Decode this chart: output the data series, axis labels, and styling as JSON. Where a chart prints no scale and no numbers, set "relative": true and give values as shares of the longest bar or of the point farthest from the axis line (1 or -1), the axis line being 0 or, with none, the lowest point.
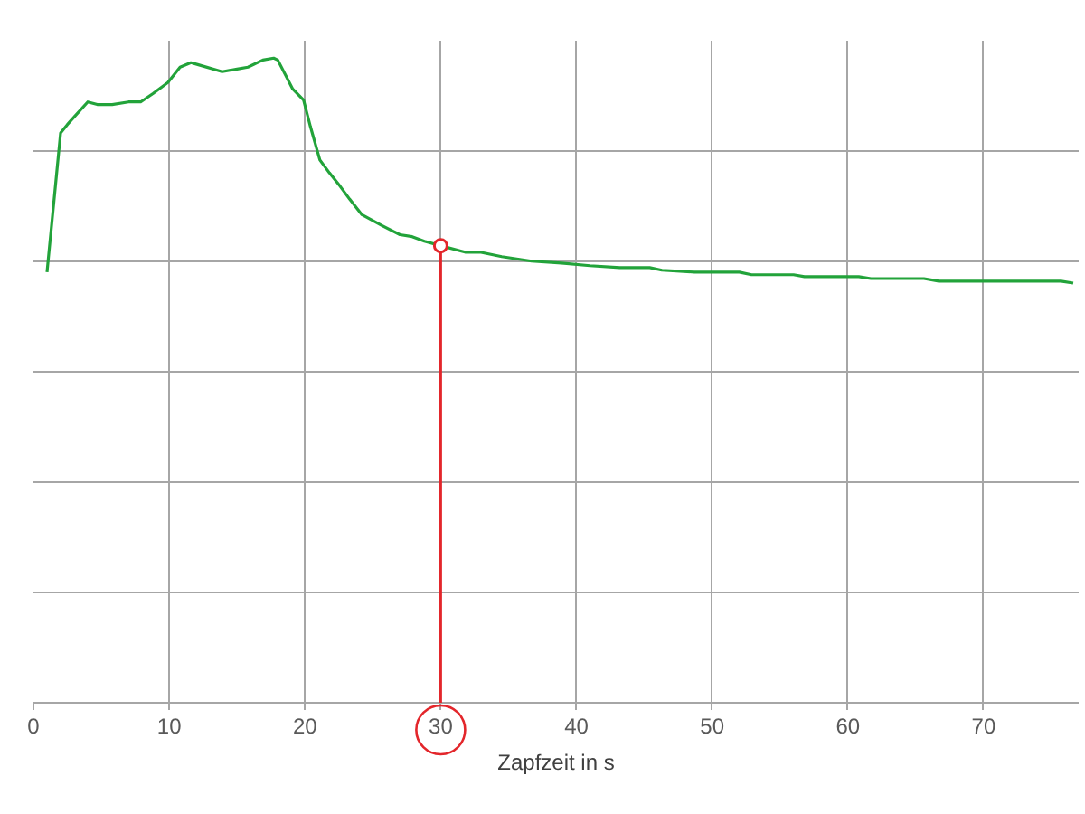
{
  "chart_data": {
    "type": "line",
    "relative": true,
    "xlabel": "Zapfzeit in s",
    "xlim": [
      0,
      77
    ],
    "xticks": [
      0,
      10,
      20,
      30,
      40,
      50,
      60,
      70
    ],
    "grid": true,
    "series": [
      {
        "color": "#22a33a",
        "x": [
          1.0,
          2.0,
          2.5,
          3.1,
          4.0,
          4.7,
          5.8,
          7.0,
          7.9,
          8.8,
          9.9,
          10.8,
          11.6,
          12.1,
          13.9,
          15.0,
          15.8,
          16.9,
          17.7,
          18.0,
          19.1,
          19.9,
          20.4,
          21.1,
          21.8,
          22.6,
          23.3,
          24.2,
          25.7,
          27.0,
          27.9,
          28.8,
          30.0,
          31.8,
          32.9,
          34.5,
          36.7,
          38.9,
          41.0,
          43.2,
          45.4,
          46.3,
          48.7,
          52.0,
          52.9,
          56.0,
          56.8,
          60.8,
          61.7,
          65.6,
          66.7,
          75.7,
          76.6
        ],
        "values": [
          0.668,
          0.884,
          0.897,
          0.911,
          0.932,
          0.928,
          0.928,
          0.932,
          0.932,
          0.945,
          0.962,
          0.986,
          0.993,
          0.99,
          0.979,
          0.983,
          0.986,
          0.997,
          1,
          0.997,
          0.952,
          0.935,
          0.894,
          0.842,
          0.822,
          0.801,
          0.781,
          0.757,
          0.74,
          0.726,
          0.723,
          0.716,
          0.709,
          0.699,
          0.699,
          0.692,
          0.685,
          0.682,
          0.678,
          0.675,
          0.675,
          0.671,
          0.668,
          0.668,
          0.664,
          0.664,
          0.661,
          0.661,
          0.658,
          0.658,
          0.654,
          0.654,
          0.651
        ]
      },
      {
        "type": "scatter",
        "marker": "circle",
        "color": "#e3262b",
        "x": [
          30
        ],
        "values": [
          0.709
        ]
      }
    ],
    "ref_lines": [
      {
        "axis": "x",
        "value": 30,
        "color": "#e3262b"
      }
    ]
  }
}
